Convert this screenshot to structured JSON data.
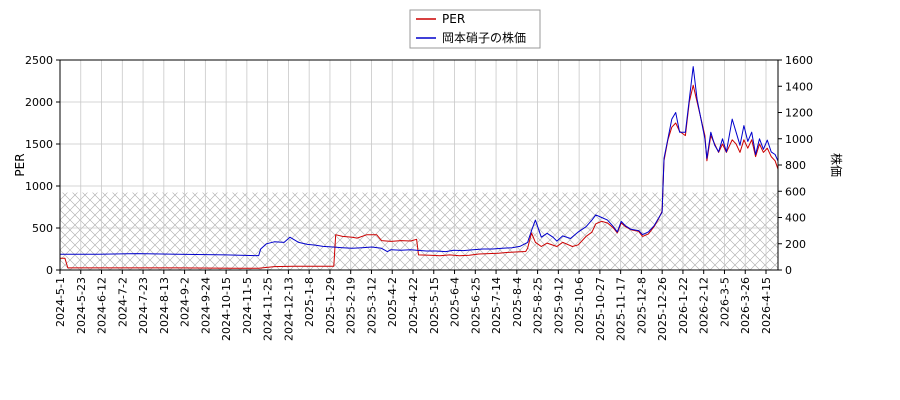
{
  "chart_data": {
    "type": "line",
    "y_left_label": "PER",
    "y_right_label": "株価",
    "y_left_lim": [
      0,
      2500
    ],
    "y_right_lim": [
      0,
      1600
    ],
    "y_left_ticks": [
      "0",
      "500",
      "1000",
      "1500",
      "2000",
      "2500"
    ],
    "y_right_ticks": [
      "0",
      "200",
      "400",
      "600",
      "800",
      "1000",
      "1200",
      "1400",
      "1600"
    ],
    "x_tick_labels": [
      "2024-5-1",
      "2024-5-23",
      "2024-6-12",
      "2024-7-2",
      "2024-7-23",
      "2024-8-13",
      "2024-9-2",
      "2024-9-24",
      "2024-10-15",
      "2024-11-5",
      "2024-11-25",
      "2024-12-13",
      "2025-1-8",
      "2025-1-29",
      "2025-2-19",
      "2025-3-12",
      "2025-4-2",
      "2025-4-22",
      "2025-5-15",
      "2025-6-4",
      "2025-6-25",
      "2025-7-14",
      "2025-8-4",
      "2025-8-25",
      "2025-9-12",
      "2025-10-6",
      "2025-10-27",
      "2025-11-17",
      "2025-12-8",
      "2025-12-26",
      "2026-1-22",
      "2026-2-12",
      "2026-3-5",
      "2026-3-26",
      "2026-4-15"
    ],
    "hatch_band_right_max": 590,
    "grid": true,
    "legend_placement": "top-center",
    "series": [
      {
        "name": "PER",
        "axis": "left",
        "color": "#cc0000",
        "points": [
          [
            0,
            140
          ],
          [
            5,
            140
          ],
          [
            8,
            25
          ],
          [
            60,
            25
          ],
          [
            120,
            25
          ],
          [
            180,
            20
          ],
          [
            204,
            20
          ],
          [
            220,
            40
          ],
          [
            240,
            45
          ],
          [
            281,
            45
          ],
          [
            283,
            420
          ],
          [
            290,
            400
          ],
          [
            300,
            390
          ],
          [
            305,
            380
          ],
          [
            315,
            420
          ],
          [
            325,
            420
          ],
          [
            330,
            350
          ],
          [
            340,
            340
          ],
          [
            350,
            350
          ],
          [
            360,
            345
          ],
          [
            366,
            365
          ],
          [
            368,
            180
          ],
          [
            380,
            175
          ],
          [
            390,
            170
          ],
          [
            400,
            180
          ],
          [
            410,
            170
          ],
          [
            420,
            175
          ],
          [
            430,
            190
          ],
          [
            440,
            195
          ],
          [
            450,
            200
          ],
          [
            460,
            210
          ],
          [
            470,
            215
          ],
          [
            478,
            220
          ],
          [
            480,
            260
          ],
          [
            484,
            440
          ],
          [
            488,
            330
          ],
          [
            494,
            280
          ],
          [
            500,
            320
          ],
          [
            510,
            280
          ],
          [
            516,
            330
          ],
          [
            526,
            280
          ],
          [
            532,
            300
          ],
          [
            540,
            400
          ],
          [
            546,
            450
          ],
          [
            550,
            550
          ],
          [
            556,
            580
          ],
          [
            562,
            560
          ],
          [
            568,
            500
          ],
          [
            572,
            440
          ],
          [
            576,
            560
          ],
          [
            580,
            520
          ],
          [
            586,
            480
          ],
          [
            594,
            460
          ],
          [
            598,
            400
          ],
          [
            604,
            430
          ],
          [
            610,
            520
          ],
          [
            614,
            600
          ],
          [
            618,
            700
          ],
          [
            620,
            1300
          ],
          [
            624,
            1550
          ],
          [
            628,
            1700
          ],
          [
            632,
            1750
          ],
          [
            636,
            1650
          ],
          [
            642,
            1600
          ],
          [
            646,
            2000
          ],
          [
            650,
            2200
          ],
          [
            654,
            2000
          ],
          [
            658,
            1800
          ],
          [
            662,
            1600
          ],
          [
            664,
            1300
          ],
          [
            668,
            1600
          ],
          [
            672,
            1500
          ],
          [
            676,
            1400
          ],
          [
            680,
            1500
          ],
          [
            684,
            1400
          ],
          [
            690,
            1550
          ],
          [
            694,
            1500
          ],
          [
            698,
            1400
          ],
          [
            702,
            1550
          ],
          [
            706,
            1450
          ],
          [
            710,
            1550
          ],
          [
            714,
            1350
          ],
          [
            718,
            1500
          ],
          [
            722,
            1400
          ],
          [
            726,
            1450
          ],
          [
            730,
            1350
          ],
          [
            734,
            1300
          ],
          [
            737,
            1200
          ]
        ]
      },
      {
        "name": "岡本硝子の株価",
        "axis": "right",
        "color": "#0000cc",
        "points": [
          [
            0,
            120
          ],
          [
            40,
            120
          ],
          [
            80,
            125
          ],
          [
            120,
            120
          ],
          [
            170,
            115
          ],
          [
            200,
            110
          ],
          [
            204,
            110
          ],
          [
            206,
            160
          ],
          [
            212,
            200
          ],
          [
            220,
            215
          ],
          [
            230,
            210
          ],
          [
            236,
            250
          ],
          [
            245,
            210
          ],
          [
            254,
            195
          ],
          [
            262,
            190
          ],
          [
            270,
            180
          ],
          [
            280,
            175
          ],
          [
            290,
            170
          ],
          [
            300,
            165
          ],
          [
            310,
            170
          ],
          [
            320,
            175
          ],
          [
            330,
            165
          ],
          [
            336,
            140
          ],
          [
            340,
            155
          ],
          [
            350,
            150
          ],
          [
            360,
            155
          ],
          [
            366,
            150
          ],
          [
            376,
            145
          ],
          [
            386,
            145
          ],
          [
            396,
            140
          ],
          [
            404,
            150
          ],
          [
            414,
            148
          ],
          [
            424,
            155
          ],
          [
            434,
            160
          ],
          [
            444,
            160
          ],
          [
            454,
            165
          ],
          [
            464,
            170
          ],
          [
            472,
            180
          ],
          [
            480,
            210
          ],
          [
            484,
            300
          ],
          [
            488,
            380
          ],
          [
            494,
            250
          ],
          [
            500,
            280
          ],
          [
            506,
            250
          ],
          [
            510,
            220
          ],
          [
            516,
            260
          ],
          [
            524,
            240
          ],
          [
            532,
            290
          ],
          [
            540,
            330
          ],
          [
            546,
            380
          ],
          [
            550,
            420
          ],
          [
            556,
            400
          ],
          [
            562,
            380
          ],
          [
            568,
            330
          ],
          [
            572,
            290
          ],
          [
            576,
            370
          ],
          [
            580,
            340
          ],
          [
            586,
            310
          ],
          [
            594,
            300
          ],
          [
            598,
            270
          ],
          [
            604,
            290
          ],
          [
            610,
            340
          ],
          [
            614,
            390
          ],
          [
            618,
            440
          ],
          [
            620,
            850
          ],
          [
            624,
            1000
          ],
          [
            628,
            1150
          ],
          [
            632,
            1200
          ],
          [
            636,
            1050
          ],
          [
            642,
            1050
          ],
          [
            646,
            1300
          ],
          [
            650,
            1550
          ],
          [
            654,
            1300
          ],
          [
            658,
            1150
          ],
          [
            662,
            1000
          ],
          [
            664,
            850
          ],
          [
            668,
            1050
          ],
          [
            672,
            950
          ],
          [
            676,
            900
          ],
          [
            680,
            1000
          ],
          [
            684,
            900
          ],
          [
            690,
            1150
          ],
          [
            694,
            1050
          ],
          [
            698,
            950
          ],
          [
            702,
            1100
          ],
          [
            706,
            980
          ],
          [
            710,
            1050
          ],
          [
            714,
            880
          ],
          [
            718,
            1000
          ],
          [
            722,
            920
          ],
          [
            726,
            990
          ],
          [
            730,
            900
          ],
          [
            734,
            880
          ],
          [
            737,
            830
          ]
        ]
      }
    ]
  }
}
